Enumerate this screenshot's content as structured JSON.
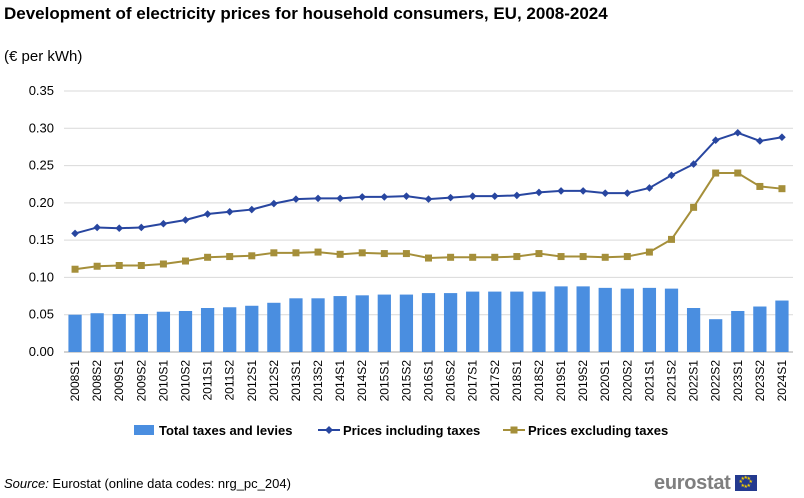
{
  "title": "Development of electricity prices for household consumers, EU, 2008-2024",
  "subtitle": "(€ per kWh)",
  "source_label": "Source:",
  "source_text": " Eurostat (online data codes: nrg_pc_204)",
  "logo_text": "eurostat",
  "colors": {
    "bars": "#4a8ee0",
    "incl": "#2846a0",
    "excl": "#a58f3a",
    "grid": "#d9d9d9"
  },
  "chart_data": {
    "type": "bar+line",
    "title": "Development of electricity prices for household consumers, EU, 2008-2024",
    "ylabel": "(€ per kWh)",
    "ylim": [
      0,
      0.35
    ],
    "yticks": [
      "0.00",
      "0.05",
      "0.10",
      "0.15",
      "0.20",
      "0.25",
      "0.30",
      "0.35"
    ],
    "grid": true,
    "legend": "bottom",
    "categories": [
      "2008S1",
      "2008S2",
      "2009S1",
      "2009S2",
      "2010S1",
      "2010S2",
      "2011S1",
      "2011S2",
      "2012S1",
      "2012S2",
      "2013S1",
      "2013S2",
      "2014S1",
      "2014S2",
      "2015S1",
      "2015S2",
      "2016S1",
      "2016S2",
      "2017S1",
      "2017S2",
      "2018S1",
      "2018S2",
      "2019S1",
      "2019S2",
      "2020S1",
      "2020S2",
      "2021S1",
      "2021S2",
      "2022S1",
      "2022S2",
      "2023S1",
      "2023S2",
      "2024S1"
    ],
    "series": [
      {
        "name": "Total taxes and levies",
        "type": "bar",
        "values": [
          0.05,
          0.052,
          0.051,
          0.051,
          0.054,
          0.055,
          0.059,
          0.06,
          0.062,
          0.066,
          0.072,
          0.072,
          0.075,
          0.076,
          0.077,
          0.077,
          0.079,
          0.079,
          0.081,
          0.081,
          0.081,
          0.081,
          0.088,
          0.088,
          0.086,
          0.085,
          0.086,
          0.085,
          0.059,
          0.044,
          0.055,
          0.061,
          0.069
        ]
      },
      {
        "name": "Prices including taxes",
        "type": "line",
        "values": [
          0.159,
          0.167,
          0.166,
          0.167,
          0.172,
          0.177,
          0.185,
          0.188,
          0.191,
          0.199,
          0.205,
          0.206,
          0.206,
          0.208,
          0.208,
          0.209,
          0.205,
          0.207,
          0.209,
          0.209,
          0.21,
          0.214,
          0.216,
          0.216,
          0.213,
          0.213,
          0.22,
          0.237,
          0.252,
          0.284,
          0.294,
          0.283,
          0.288
        ]
      },
      {
        "name": "Prices excluding taxes",
        "type": "line",
        "values": [
          0.111,
          0.115,
          0.116,
          0.116,
          0.118,
          0.122,
          0.127,
          0.128,
          0.129,
          0.133,
          0.133,
          0.134,
          0.131,
          0.133,
          0.132,
          0.132,
          0.126,
          0.127,
          0.127,
          0.127,
          0.128,
          0.132,
          0.128,
          0.128,
          0.127,
          0.128,
          0.134,
          0.151,
          0.194,
          0.24,
          0.24,
          0.222,
          0.219
        ]
      }
    ]
  }
}
